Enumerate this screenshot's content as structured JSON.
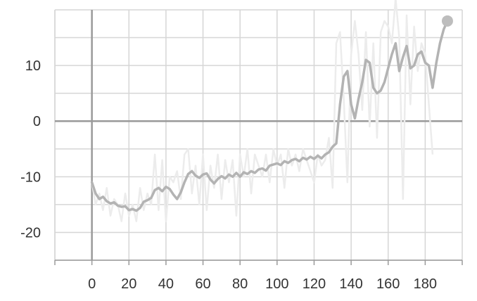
{
  "chart_data": {
    "type": "line",
    "title": "",
    "xlabel": "",
    "ylabel": "",
    "xlim": [
      -20,
      200
    ],
    "ylim": [
      -25,
      20
    ],
    "x_ticks": [
      0,
      20,
      40,
      60,
      80,
      100,
      120,
      140,
      160,
      180
    ],
    "y_ticks": [
      -20,
      -10,
      0,
      10
    ],
    "x_tick_labels": [
      "0",
      "20",
      "40",
      "60",
      "80",
      "100",
      "120",
      "140",
      "160",
      "180"
    ],
    "y_tick_labels": [
      "-20",
      "-10",
      "0",
      "10"
    ],
    "grid": true,
    "legend": "none",
    "colors": {
      "smoothed": "#b3b3b3",
      "raw": "#ececec",
      "grid": "#d6d6d6",
      "axis": "#9a9a9a",
      "zero_line": "#9a9a9a",
      "end_marker": "#bdbdbd"
    },
    "series": [
      {
        "role": "raw",
        "x": [
          0,
          2,
          4,
          6,
          8,
          10,
          12,
          14,
          16,
          18,
          20,
          22,
          24,
          26,
          28,
          30,
          32,
          34,
          36,
          38,
          40,
          42,
          44,
          46,
          48,
          50,
          52,
          54,
          56,
          58,
          60,
          62,
          64,
          66,
          68,
          70,
          72,
          74,
          76,
          78,
          80,
          82,
          84,
          86,
          88,
          90,
          92,
          94,
          96,
          98,
          100,
          102,
          104,
          106,
          108,
          110,
          112,
          114,
          116,
          118,
          120,
          122,
          124,
          126,
          128,
          130,
          132,
          134,
          136,
          138,
          140,
          142,
          144,
          146,
          148,
          150,
          152,
          154,
          156,
          158,
          160,
          162,
          164,
          166,
          168,
          170,
          172,
          174,
          176,
          178,
          180,
          182,
          184
        ],
        "y": [
          -11,
          -15,
          -13,
          -16,
          -12,
          -17,
          -14,
          -15,
          -18,
          -13,
          -17,
          -15,
          -18,
          -12,
          -16,
          -13,
          -15,
          -6,
          -16,
          -7,
          -18,
          -10,
          -11,
          -9,
          -14,
          -6,
          -5,
          -13,
          -8,
          -15,
          -6,
          -16,
          -8,
          -12,
          -6,
          -14,
          -7,
          -11,
          -7,
          -17,
          -6,
          -10,
          -5,
          -13,
          -6,
          -8,
          -10,
          -6,
          -11,
          -5,
          -8,
          -6,
          -12,
          -5,
          -8,
          -6,
          -9,
          -5,
          -7,
          -9,
          -11,
          -6,
          -8,
          -7,
          -3,
          -12,
          14,
          16,
          4,
          -11,
          12,
          18,
          12,
          2,
          16,
          -1,
          14,
          -3,
          16,
          18,
          17,
          14,
          22,
          15,
          -14,
          19,
          3,
          17,
          9,
          14,
          12,
          3,
          -6
        ]
      },
      {
        "role": "smoothed",
        "x": [
          0,
          2,
          4,
          6,
          8,
          10,
          12,
          14,
          16,
          18,
          20,
          22,
          24,
          26,
          28,
          30,
          32,
          34,
          36,
          38,
          40,
          42,
          44,
          46,
          48,
          50,
          52,
          54,
          56,
          58,
          60,
          62,
          64,
          66,
          68,
          70,
          72,
          74,
          76,
          78,
          80,
          82,
          84,
          86,
          88,
          90,
          92,
          94,
          96,
          98,
          100,
          102,
          104,
          106,
          108,
          110,
          112,
          114,
          116,
          118,
          120,
          122,
          124,
          126,
          128,
          130,
          132,
          134,
          136,
          138,
          140,
          142,
          144,
          146,
          148,
          150,
          152,
          154,
          156,
          158,
          160,
          162,
          164,
          166,
          168,
          170,
          172,
          174,
          176,
          178,
          180,
          182,
          184,
          186,
          188,
          190,
          192
        ],
        "y": [
          -11,
          -13,
          -14,
          -13.6,
          -14.4,
          -14.8,
          -14.6,
          -15.2,
          -15.4,
          -15.3,
          -16,
          -15.8,
          -16.1,
          -15.6,
          -14.5,
          -14.2,
          -13.8,
          -12.4,
          -12.0,
          -12.6,
          -11.8,
          -12.2,
          -13.2,
          -14.0,
          -12.8,
          -11.0,
          -9.5,
          -9.0,
          -9.8,
          -10.2,
          -9.6,
          -9.4,
          -10.5,
          -11.2,
          -10.4,
          -9.9,
          -10.3,
          -9.6,
          -10.0,
          -9.3,
          -10.0,
          -9.2,
          -9.5,
          -9.0,
          -9.3,
          -8.7,
          -8.5,
          -8.9,
          -8.0,
          -7.8,
          -7.6,
          -7.9,
          -7.2,
          -7.5,
          -7.0,
          -6.8,
          -7.2,
          -6.6,
          -6.9,
          -6.4,
          -6.8,
          -6.2,
          -6.7,
          -6.0,
          -5.6,
          -4.6,
          -4.0,
          3.0,
          8.0,
          9.0,
          3.0,
          0.5,
          4.0,
          7.0,
          11.0,
          10.5,
          6.0,
          5.0,
          5.5,
          7.0,
          9.5,
          12.0,
          14.0,
          9.0,
          11.5,
          13.5,
          9.5,
          10.0,
          12.0,
          12.5,
          10.5,
          10.0,
          6.0,
          10.5,
          14.0,
          16.5,
          18.0
        ]
      }
    ]
  }
}
